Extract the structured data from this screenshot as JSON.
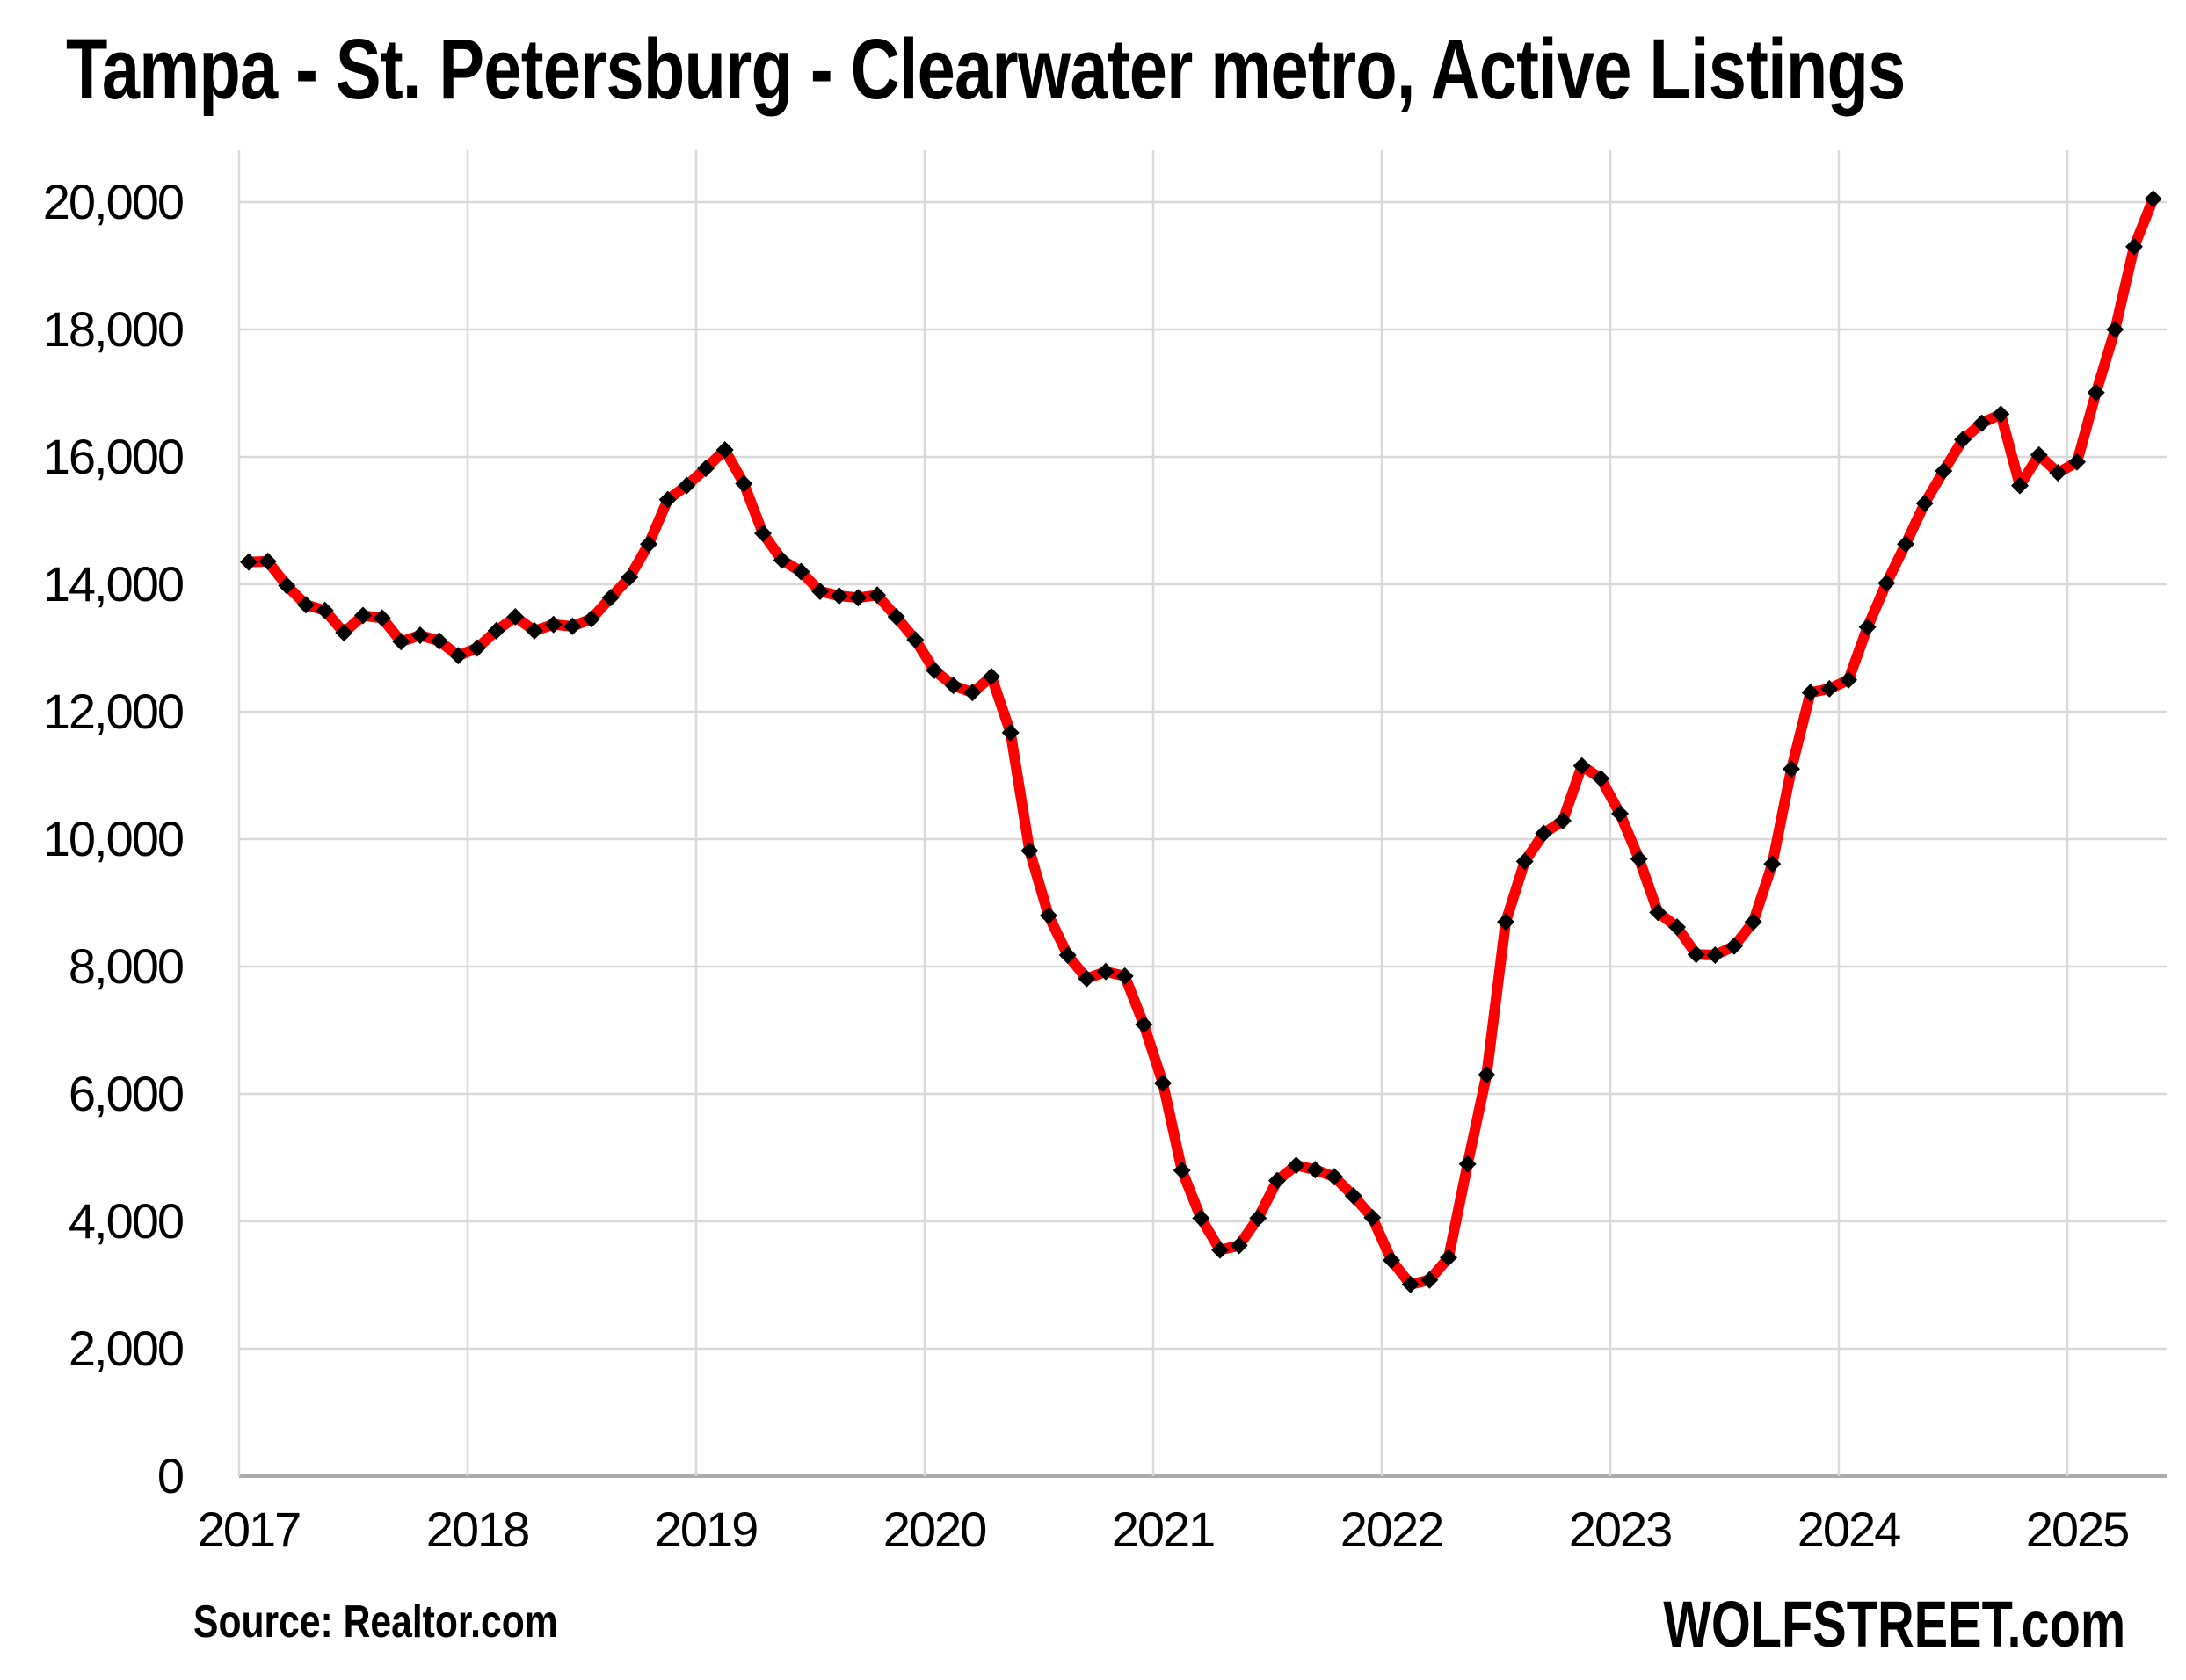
{
  "page": {
    "title": "Tampa - St. Petersburg - Clearwater metro, Active Listings",
    "source_note": "Source: Realtor.com",
    "branding": "WOLFSTREET.com",
    "background_color": "#ffffff"
  },
  "chart_data": {
    "type": "line",
    "title": "Tampa - St. Petersburg - Clearwater metro, Active Listings",
    "xlabel": "",
    "ylabel": "",
    "x_start": "2017-01",
    "x_frequency": "monthly",
    "x_end": "2025-05",
    "x_tick_labels": [
      "2017",
      "2018",
      "2019",
      "2020",
      "2021",
      "2022",
      "2023",
      "2024",
      "2025"
    ],
    "y_tick_labels": [
      "0",
      "2,000",
      "4,000",
      "6,000",
      "8,000",
      "10,000",
      "12,000",
      "14,000",
      "16,000",
      "18,000",
      "20,000"
    ],
    "ylim": [
      0,
      20000
    ],
    "y_tick_step": 2000,
    "grid": true,
    "grid_color": "#d9d9d9",
    "axis_color": "#ababab",
    "legend": "none",
    "series": [
      {
        "name": "Active listings",
        "line_color": "#ff0000",
        "line_width": 12,
        "marker": {
          "shape": "diamond",
          "color": "#000000",
          "half_size": 10
        },
        "values": [
          14350,
          14360,
          13980,
          13680,
          13590,
          13240,
          13510,
          13470,
          13100,
          13200,
          13110,
          12880,
          13000,
          13270,
          13490,
          13270,
          13370,
          13340,
          13460,
          13790,
          14110,
          14630,
          15330,
          15550,
          15820,
          16110,
          15580,
          14800,
          14380,
          14200,
          13890,
          13820,
          13790,
          13830,
          13490,
          13130,
          12650,
          12410,
          12300,
          12550,
          11670,
          9820,
          8800,
          8180,
          7810,
          7920,
          7850,
          7090,
          6170,
          4800,
          4050,
          3550,
          3620,
          4050,
          4640,
          4880,
          4810,
          4700,
          4400,
          4060,
          3390,
          3010,
          3080,
          3430,
          4900,
          6300,
          8700,
          9650,
          10090,
          10290,
          11150,
          10950,
          10400,
          9690,
          8850,
          8620,
          8190,
          8180,
          8320,
          8700,
          9610,
          11100,
          12300,
          12360,
          12500,
          13330,
          14020,
          14630,
          15270,
          15780,
          16270,
          16530,
          16670,
          15550,
          16030,
          15750,
          15920,
          17010,
          18000,
          19300,
          20050
        ]
      }
    ]
  }
}
